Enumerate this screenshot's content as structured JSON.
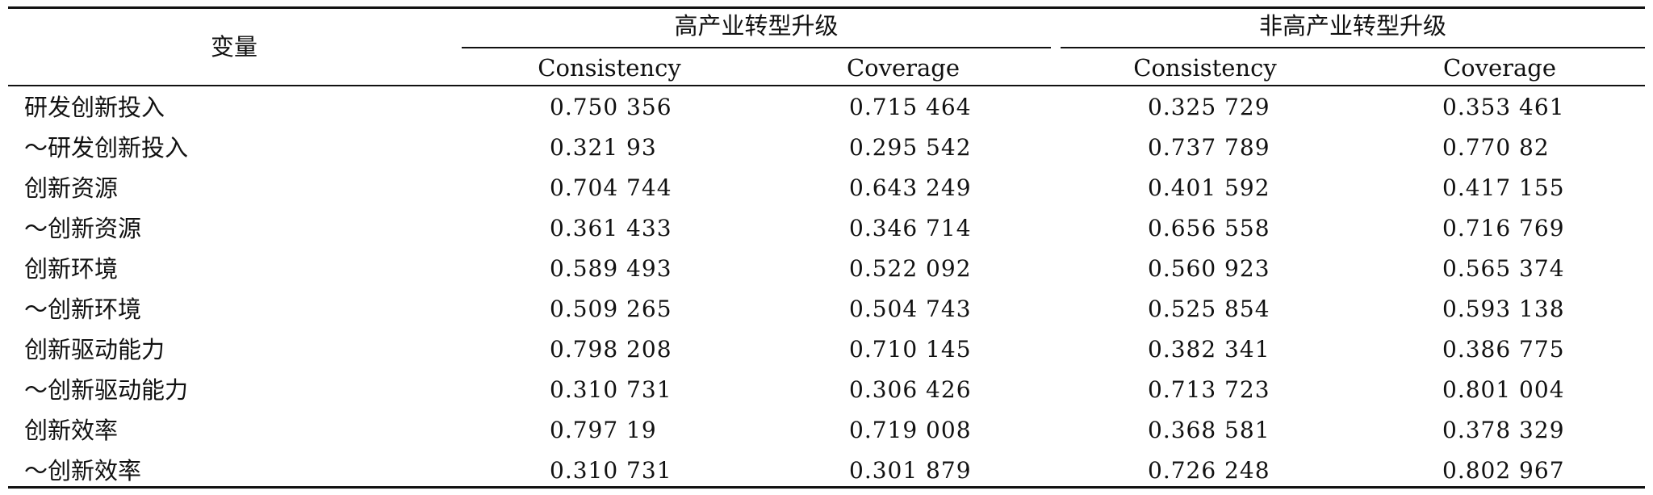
{
  "table": {
    "header": {
      "variable": "变量",
      "group_high": "高产业转型升级",
      "group_nonhigh": "非高产业转型升级",
      "sub_labels": [
        "Consistency",
        "Coverage",
        "Consistency",
        "Coverage"
      ]
    },
    "rows": [
      {
        "label": "研发创新投入",
        "values": [
          "0.750 356",
          "0.715 464",
          "0.325 729",
          "0.353 461"
        ]
      },
      {
        "label": "～研发创新投入",
        "values": [
          "0.321 93",
          "0.295 542",
          "0.737 789",
          "0.770 82"
        ]
      },
      {
        "label": "创新资源",
        "values": [
          "0.704 744",
          "0.643 249",
          "0.401 592",
          "0.417 155"
        ]
      },
      {
        "label": "～创新资源",
        "values": [
          "0.361 433",
          "0.346 714",
          "0.656 558",
          "0.716 769"
        ]
      },
      {
        "label": "创新环境",
        "values": [
          "0.589 493",
          "0.522 092",
          "0.560 923",
          "0.565 374"
        ]
      },
      {
        "label": "～创新环境",
        "values": [
          "0.509 265",
          "0.504 743",
          "0.525 854",
          "0.593 138"
        ]
      },
      {
        "label": "创新驱动能力",
        "values": [
          "0.798 208",
          "0.710 145",
          "0.382 341",
          "0.386 775"
        ]
      },
      {
        "label": "～创新驱动能力",
        "values": [
          "0.310 731",
          "0.306 426",
          "0.713 723",
          "0.801 004"
        ]
      },
      {
        "label": "创新效率",
        "values": [
          "0.797 19",
          "0.719 008",
          "0.368 581",
          "0.378 329"
        ]
      },
      {
        "label": "～创新效率",
        "values": [
          "0.310 731",
          "0.301 879",
          "0.726 248",
          "0.802 967"
        ]
      }
    ]
  }
}
